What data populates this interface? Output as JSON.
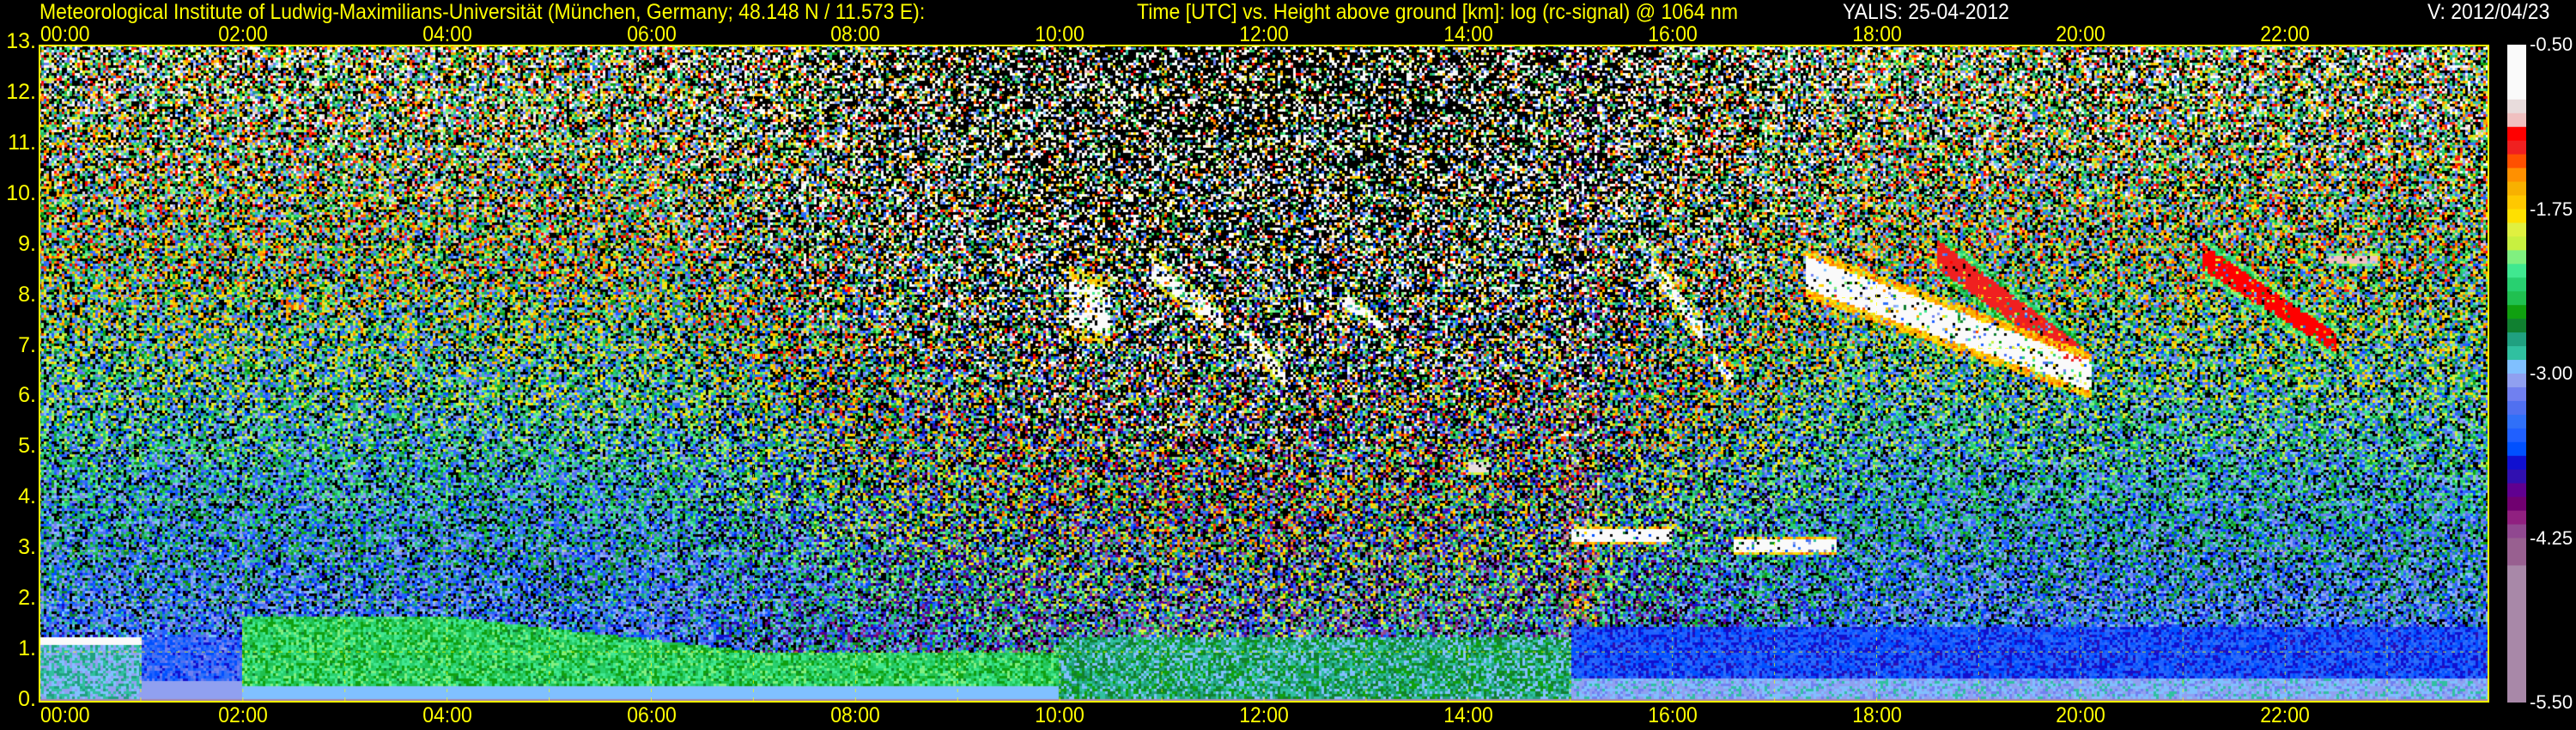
{
  "header": {
    "institute": "Meteorological Institute of Ludwig-Maximilians-Universität (München, Germany; 48.148 N / 11.573 E):",
    "plot_title": "Time [UTC] vs. Height above ground [km]: log (rc-signal) @ 1064 nm",
    "instrument_date": "YALIS: 25-04-2012",
    "version": "V: 2012/04/23"
  },
  "chart_data": {
    "type": "heatmap",
    "title": "Time [UTC] vs. Height above ground [km]: log (rc-signal) @ 1064 nm",
    "x_unit": "hours UTC",
    "xlim": [
      0,
      24
    ],
    "x_ticks": [
      {
        "value": 0,
        "label": "00:00"
      },
      {
        "value": 2,
        "label": "02:00"
      },
      {
        "value": 4,
        "label": "04:00"
      },
      {
        "value": 6,
        "label": "06:00"
      },
      {
        "value": 8,
        "label": "08:00"
      },
      {
        "value": 10,
        "label": "10:00"
      },
      {
        "value": 12,
        "label": "12:00"
      },
      {
        "value": 14,
        "label": "14:00"
      },
      {
        "value": 16,
        "label": "16:00"
      },
      {
        "value": 18,
        "label": "18:00"
      },
      {
        "value": 20,
        "label": "20:00"
      },
      {
        "value": 22,
        "label": "22:00"
      }
    ],
    "ylim": [
      0,
      13
    ],
    "y_ticks": [
      {
        "value": 0,
        "label": "0."
      },
      {
        "value": 1,
        "label": "1."
      },
      {
        "value": 2,
        "label": "2."
      },
      {
        "value": 3,
        "label": "3."
      },
      {
        "value": 4,
        "label": "4."
      },
      {
        "value": 5,
        "label": "5."
      },
      {
        "value": 6,
        "label": "6."
      },
      {
        "value": 7,
        "label": "7."
      },
      {
        "value": 8,
        "label": "8."
      },
      {
        "value": 9,
        "label": "9."
      },
      {
        "value": 10,
        "label": "10."
      },
      {
        "value": 11,
        "label": "11."
      },
      {
        "value": 12,
        "label": "12."
      },
      {
        "value": 13,
        "label": "13."
      }
    ],
    "grid": true,
    "grid_color": "#ffff00",
    "colorbar": {
      "range": [
        -5.5,
        -0.5
      ],
      "ticks": [
        {
          "value": -0.5,
          "label": "-0.50"
        },
        {
          "value": -1.75,
          "label": "-1.75"
        },
        {
          "value": -3.0,
          "label": "-3.00"
        },
        {
          "value": -4.25,
          "label": "-4.25"
        },
        {
          "value": -5.5,
          "label": "-5.50"
        }
      ],
      "colors_top_to_bottom": [
        "#fafafa",
        "#fafafa",
        "#fafafa",
        "#fafafa",
        "#e8dcdc",
        "#f0c0c0",
        "#ff0000",
        "#f02020",
        "#ff5000",
        "#ff9000",
        "#f8b000",
        "#ffc800",
        "#ffe000",
        "#e0f040",
        "#c8f040",
        "#80f080",
        "#40e890",
        "#28d070",
        "#20c050",
        "#10a010",
        "#108030",
        "#20a080",
        "#30c0a0",
        "#80c0ff",
        "#90a0f0",
        "#7080f0",
        "#5070f0",
        "#3070f8",
        "#2060ff",
        "#0050ff",
        "#1010d0",
        "#3010b0",
        "#600090",
        "#700070",
        "#902080",
        "#904890",
        "#986090",
        "#986090",
        "#a888a8",
        "#a888a8",
        "#a888a8",
        "#a888a8",
        "#a888a8",
        "#a888a8",
        "#a888a8",
        "#a888a8",
        "#a888a8",
        "#a888a8"
      ]
    },
    "features": [
      {
        "kind": "cloud",
        "t_start": 17.3,
        "t_end": 20.1,
        "h_top_start": 9.0,
        "h_top_end": 6.9,
        "h_bot_start": 8.0,
        "h_bot_end": 6.0,
        "value": -0.6
      },
      {
        "kind": "cloud",
        "t_start": 18.6,
        "t_end": 20.0,
        "h_top_start": 9.3,
        "h_top_end": 7.2,
        "h_bot_start": 8.4,
        "h_bot_end": 6.4,
        "value": -1.3
      },
      {
        "kind": "cloud",
        "t_start": 21.2,
        "t_end": 22.5,
        "h_top_start": 9.2,
        "h_top_end": 7.4,
        "h_bot_start": 8.4,
        "h_bot_end": 6.8,
        "value": -1.2
      },
      {
        "kind": "cloud",
        "t_start": 22.4,
        "t_end": 22.9,
        "h_top_start": 8.9,
        "h_top_end": 8.9,
        "h_bot_start": 8.6,
        "h_bot_end": 8.6,
        "value": -1.1
      },
      {
        "kind": "cirrus",
        "t_start": 10.1,
        "t_end": 10.5,
        "h_top_start": 8.6,
        "h_top_end": 8.4,
        "h_bot_start": 7.2,
        "h_bot_end": 7.0,
        "value": -0.7
      },
      {
        "kind": "cirrus",
        "t_start": 10.9,
        "t_end": 11.6,
        "h_top_start": 8.9,
        "h_top_end": 7.8,
        "h_bot_start": 8.3,
        "h_bot_end": 7.2,
        "value": -0.8
      },
      {
        "kind": "cirrus",
        "t_start": 11.8,
        "t_end": 12.2,
        "h_top_start": 7.6,
        "h_top_end": 6.6,
        "h_bot_start": 7.0,
        "h_bot_end": 6.2,
        "value": -0.8
      },
      {
        "kind": "cirrus",
        "t_start": 12.8,
        "t_end": 13.2,
        "h_top_start": 8.2,
        "h_top_end": 7.5,
        "h_bot_start": 7.7,
        "h_bot_end": 7.2,
        "value": -0.9
      },
      {
        "kind": "cirrus",
        "t_start": 15.8,
        "t_end": 16.3,
        "h_top_start": 8.9,
        "h_top_end": 7.6,
        "h_bot_start": 8.4,
        "h_bot_end": 7.0,
        "value": -0.8
      },
      {
        "kind": "cirrus",
        "t_start": 16.4,
        "t_end": 16.6,
        "h_top_start": 7.0,
        "h_top_end": 6.5,
        "h_bot_start": 6.6,
        "h_bot_end": 6.2,
        "value": -0.7
      },
      {
        "kind": "cloud",
        "t_start": 14.0,
        "t_end": 14.2,
        "h_top_start": 4.8,
        "h_top_end": 4.8,
        "h_bot_start": 4.5,
        "h_bot_end": 4.5,
        "value": -1.0
      },
      {
        "kind": "cloud",
        "t_start": 15.0,
        "t_end": 16.0,
        "h_top_start": 3.5,
        "h_top_end": 3.5,
        "h_bot_start": 3.1,
        "h_bot_end": 3.1,
        "value": -0.6
      },
      {
        "kind": "cloud",
        "t_start": 16.6,
        "t_end": 17.6,
        "h_top_start": 3.3,
        "h_top_end": 3.3,
        "h_bot_start": 2.9,
        "h_bot_end": 2.9,
        "value": -0.6
      }
    ]
  }
}
